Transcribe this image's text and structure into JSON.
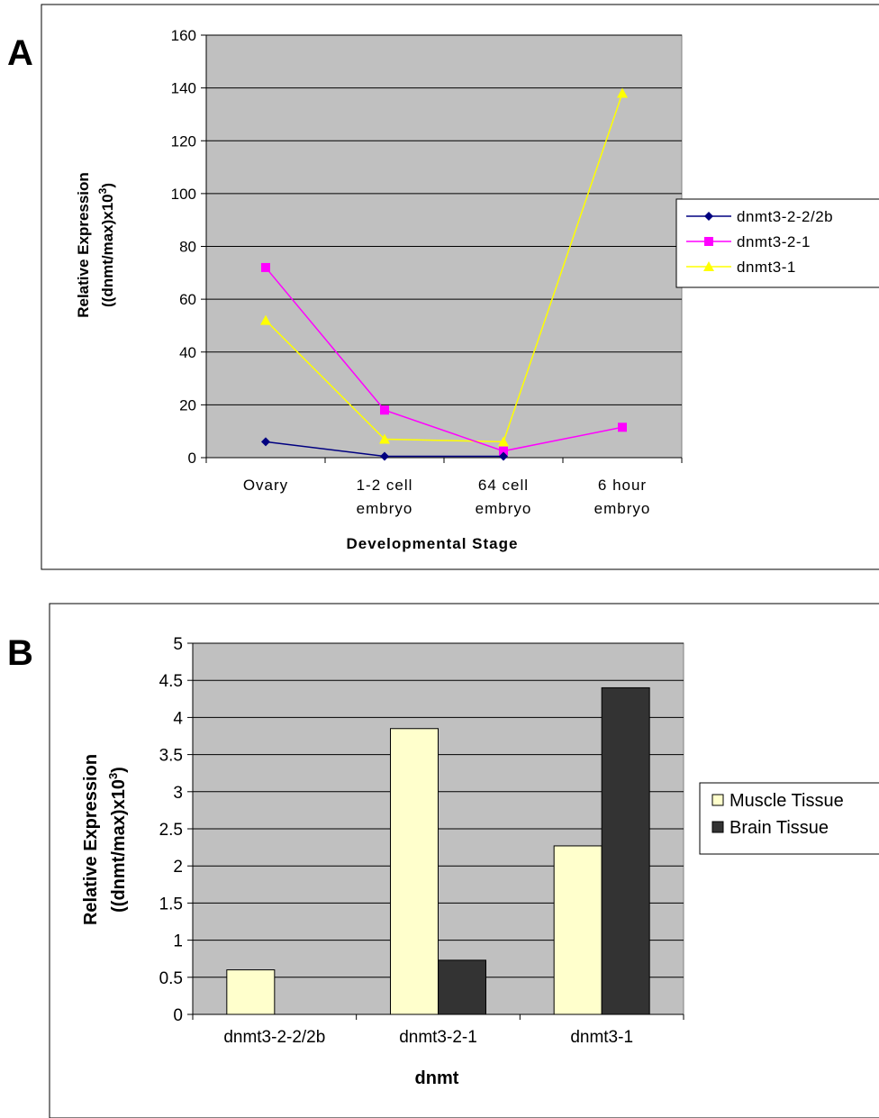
{
  "panels": {
    "a": {
      "letter": "A"
    },
    "b": {
      "letter": "B"
    }
  },
  "colors": {
    "plot_bg_a": "#C0C0C0",
    "plot_bg_b": "#C0C0C0",
    "grid": "#000000",
    "series_a": [
      "#000080",
      "#FF00FF",
      "#FFFF00"
    ],
    "bars_b": [
      "#FFFFCC",
      "#333333"
    ]
  },
  "chart_data": [
    {
      "type": "line",
      "xlabel": "Developmental Stage",
      "ylabel": "Relative Expression",
      "ylabel2": "((dnmt/max)x10",
      "ylabel2_sup": "3",
      "ylabel2_end": ")",
      "categories": [
        [
          "Ovary"
        ],
        [
          "1-2 cell",
          "embryo"
        ],
        [
          "64 cell",
          "embryo"
        ],
        [
          "6 hour",
          "embryo"
        ]
      ],
      "ylim": [
        0,
        160
      ],
      "yticks": [
        0,
        20,
        40,
        60,
        80,
        100,
        120,
        140,
        160
      ],
      "grid": true,
      "legend": "right",
      "series": [
        {
          "name": "dnmt3-2-2/2b",
          "marker": "diamond",
          "values": [
            6,
            0.5,
            0.5,
            null
          ]
        },
        {
          "name": "dnmt3-2-1",
          "marker": "square",
          "values": [
            72,
            18,
            2.5,
            11.5
          ]
        },
        {
          "name": "dnmt3-1",
          "marker": "triangle",
          "values": [
            52,
            7,
            6,
            138
          ]
        }
      ]
    },
    {
      "type": "bar",
      "xlabel": "dnmt",
      "ylabel": "Relative Expression",
      "ylabel2": "((dnmt/max)x10",
      "ylabel2_sup": "3",
      "ylabel2_end": ")",
      "categories": [
        "dnmt3-2-2/2b",
        "dnmt3-2-1",
        "dnmt3-1"
      ],
      "ylim": [
        0,
        5
      ],
      "yticks": [
        "0",
        "0.5",
        "1",
        "1.5",
        "2",
        "2.5",
        "3",
        "3.5",
        "4",
        "4.5",
        "5"
      ],
      "grid": true,
      "legend": "right",
      "series": [
        {
          "name": "Muscle Tissue",
          "values": [
            0.6,
            3.85,
            2.27
          ]
        },
        {
          "name": "Brain Tissue",
          "values": [
            0,
            0.73,
            4.4
          ]
        }
      ]
    }
  ]
}
